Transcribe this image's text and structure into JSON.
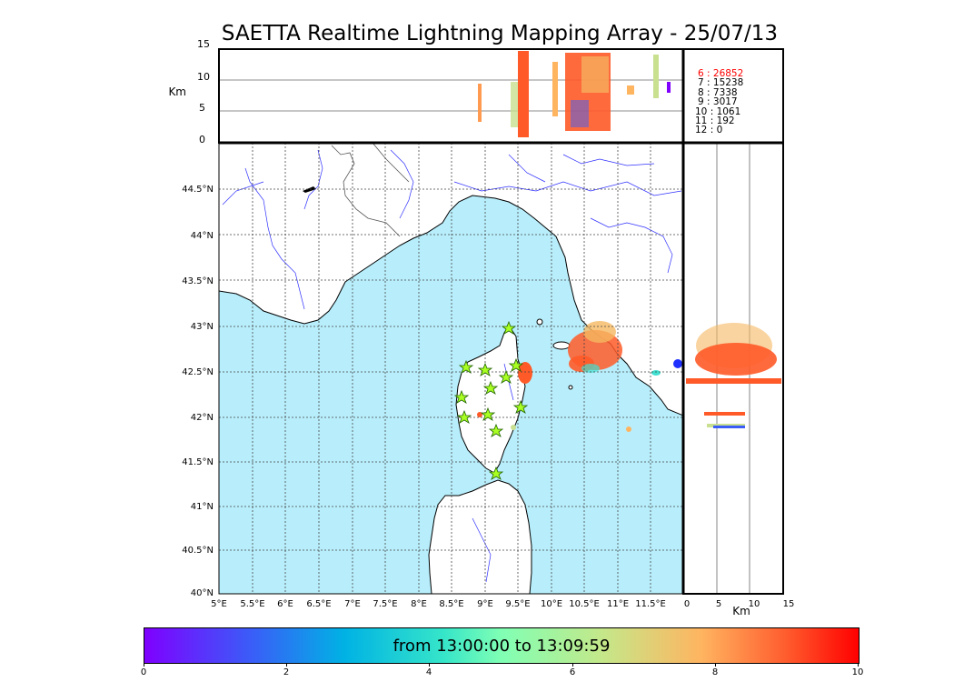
{
  "title": "SAETTA Realtime Lightning Mapping Array - 25/07/13",
  "alt_axis": {
    "unit": "Km",
    "ticks": [
      "15",
      "10",
      "5",
      "0"
    ],
    "bottom_ticks": [
      "0",
      "5",
      "10",
      "15"
    ]
  },
  "lat_ticks": [
    "44.5°N",
    "44°N",
    "43.5°N",
    "43°N",
    "42.5°N",
    "42°N",
    "41.5°N",
    "41°N",
    "40.5°N",
    "40°N"
  ],
  "lon_ticks": [
    "5°E",
    "5.5°E",
    "6°E",
    "6.5°E",
    "7°E",
    "7.5°E",
    "8°E",
    "8.5°E",
    "9°E",
    "9.5°E",
    "10°E",
    "10.5°E",
    "11°E",
    "11.5°E"
  ],
  "station_counts": [
    {
      "label": "6  :    26852",
      "color": "#ff0000"
    },
    {
      "label": "7  :    15238",
      "color": "#000000"
    },
    {
      "label": "8  :     7338",
      "color": "#000000"
    },
    {
      "label": "9  :     3017",
      "color": "#000000"
    },
    {
      "label": "10  :     1061",
      "color": "#000000"
    },
    {
      "label": "11  :      192",
      "color": "#000000"
    },
    {
      "label": "12  :        0",
      "color": "#000000"
    }
  ],
  "colorbar": {
    "label": "from 13:00:00 to 13:09:59",
    "ticks": [
      "0",
      "2",
      "4",
      "6",
      "8",
      "10"
    ],
    "range": [
      0,
      10
    ]
  },
  "colors": {
    "sea": "#b8eefb",
    "land": "#ffffff",
    "rivers": "#3030ff"
  }
}
